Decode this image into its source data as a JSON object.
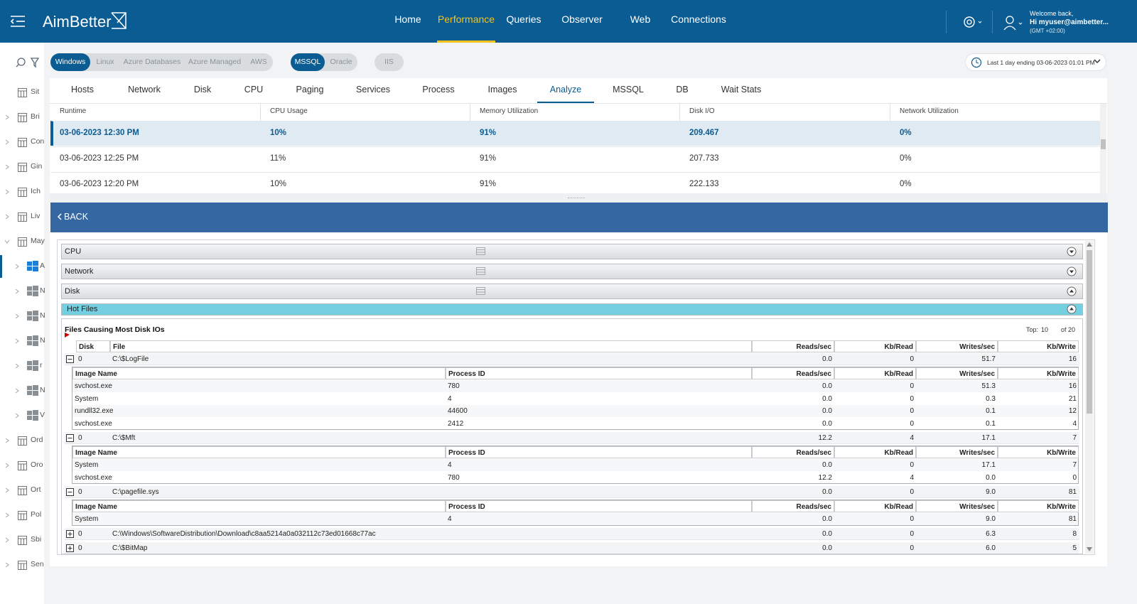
{
  "header": {
    "logo": "AimBetter",
    "nav": [
      "Home",
      "Performance",
      "Queries",
      "Observer",
      "Web",
      "Connections"
    ],
    "active_nav": 1,
    "welcome": "Welcome back,",
    "user": "Hi myuser@aimbetter...",
    "timezone": "(GMT +02:00)"
  },
  "filters": {
    "platforms": [
      "Windows",
      "Linux",
      "Azure Databases",
      "Azure Managed",
      "AWS"
    ],
    "databases": [
      "MSSQL",
      "Oracle"
    ],
    "web": [
      "IIS"
    ],
    "time_range": "Last 1 day ending  03-06-2023 01:01 PM"
  },
  "sidebar": {
    "items": [
      "Sit",
      "Bri",
      "Con",
      "Gin",
      "Ich",
      "Liv",
      "May",
      "A",
      "N",
      "N",
      "N",
      "r",
      "N",
      "V",
      "Ord",
      "Oro",
      "Ort",
      "Pol",
      "Sbi",
      "Sen"
    ]
  },
  "tabs": {
    "items": [
      "Hosts",
      "Network",
      "Disk",
      "CPU",
      "Paging",
      "Services",
      "Process",
      "Images",
      "Analyze",
      "MSSQL",
      "DB",
      "Wait Stats"
    ],
    "active": 8
  },
  "runtime_table": {
    "columns": [
      "Runtime",
      "CPU Usage",
      "Memory Utilization",
      "Disk I/O",
      "Network Utilization"
    ],
    "rows": [
      [
        "03-06-2023 12:30 PM",
        "10%",
        "91%",
        "209.467",
        "0%"
      ],
      [
        "03-06-2023 12:25 PM",
        "11%",
        "91%",
        "207.733",
        "0%"
      ],
      [
        "03-06-2023 12:20 PM",
        "10%",
        "91%",
        "222.133",
        "0%"
      ]
    ],
    "selected": 0
  },
  "back": "BACK",
  "sections": [
    "CPU",
    "Network",
    "Disk",
    "Hot Files"
  ],
  "hot_files": {
    "title": "Files Causing Most Disk IOs",
    "top_label": "Top:",
    "top_value": "10",
    "total": "of 20",
    "columns": [
      "Disk",
      "File",
      "Reads/sec",
      "Kb/Read",
      "Writes/sec",
      "Kb/Write"
    ],
    "sub_columns": [
      "Image Name",
      "Process ID",
      "Reads/sec",
      "Kb/Read",
      "Writes/sec",
      "Kb/Write"
    ],
    "files": [
      {
        "disk": "0",
        "file": "C:\\$LogFile",
        "reads": "0.0",
        "kb_read": "0",
        "writes": "51.7",
        "kb_write": "16",
        "expanded": true,
        "processes": [
          {
            "image": "svchost.exe",
            "pid": "780",
            "reads": "0.0",
            "kb_read": "0",
            "writes": "51.3",
            "kb_write": "16"
          },
          {
            "image": "System",
            "pid": "4",
            "reads": "0.0",
            "kb_read": "0",
            "writes": "0.3",
            "kb_write": "21"
          },
          {
            "image": "rundll32.exe",
            "pid": "44600",
            "reads": "0.0",
            "kb_read": "0",
            "writes": "0.1",
            "kb_write": "12"
          },
          {
            "image": "svchost.exe",
            "pid": "2412",
            "reads": "0.0",
            "kb_read": "0",
            "writes": "0.1",
            "kb_write": "4"
          }
        ]
      },
      {
        "disk": "0",
        "file": "C:\\$Mft",
        "reads": "12.2",
        "kb_read": "4",
        "writes": "17.1",
        "kb_write": "7",
        "expanded": true,
        "processes": [
          {
            "image": "System",
            "pid": "4",
            "reads": "0.0",
            "kb_read": "0",
            "writes": "17.1",
            "kb_write": "7"
          },
          {
            "image": "svchost.exe",
            "pid": "780",
            "reads": "12.2",
            "kb_read": "4",
            "writes": "0.0",
            "kb_write": "0"
          }
        ]
      },
      {
        "disk": "0",
        "file": "C:\\pagefile.sys",
        "reads": "0.0",
        "kb_read": "0",
        "writes": "9.0",
        "kb_write": "81",
        "expanded": true,
        "processes": [
          {
            "image": "System",
            "pid": "4",
            "reads": "0.0",
            "kb_read": "0",
            "writes": "9.0",
            "kb_write": "81"
          }
        ]
      },
      {
        "disk": "0",
        "file": "C:\\Windows\\SoftwareDistribution\\Download\\c8aa5214a0a032112c73ed01668c77ac",
        "reads": "0.0",
        "kb_read": "0",
        "writes": "6.3",
        "kb_write": "8",
        "expanded": false,
        "processes": []
      },
      {
        "disk": "0",
        "file": "C:\\$BitMap",
        "reads": "0.0",
        "kb_read": "0",
        "writes": "6.0",
        "kb_write": "5",
        "expanded": false,
        "processes": []
      }
    ]
  }
}
